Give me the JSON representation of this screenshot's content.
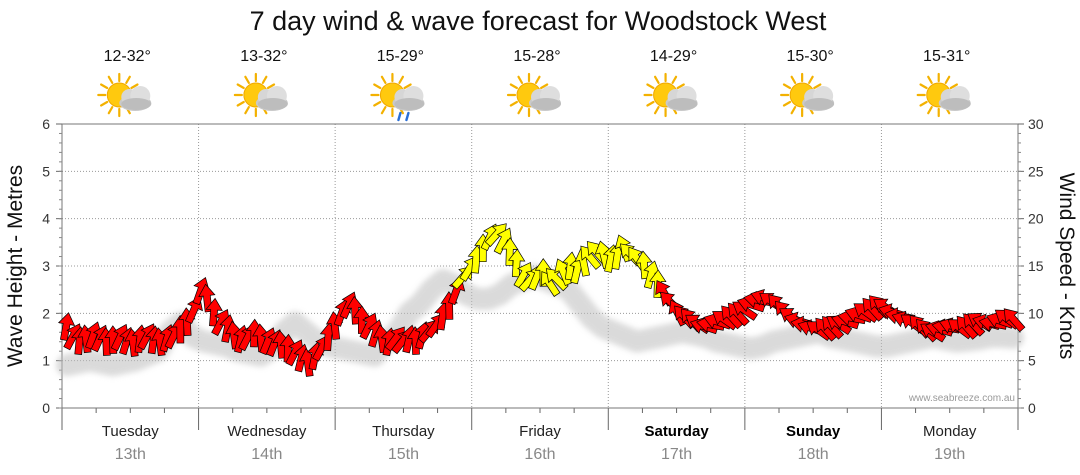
{
  "chart_data": {
    "type": "line",
    "title": "7 day wind & wave forecast for Woodstock West",
    "y_left_label": "Wave Height - Metres",
    "y_right_label": "Wind Speed - Knots",
    "y_left_ticks": [
      "0",
      "1",
      "2",
      "3",
      "4",
      "5",
      "6"
    ],
    "y_right_ticks": [
      "0",
      "5",
      "10",
      "15",
      "20",
      "25",
      "30"
    ],
    "y_left_lim": [
      0,
      6
    ],
    "y_right_lim": [
      0,
      30
    ],
    "grid": true,
    "days": [
      {
        "name": "Tuesday",
        "date": "13th",
        "temp": "12-32°",
        "icon": "sun-cloud-icon",
        "bold": false
      },
      {
        "name": "Wednesday",
        "date": "14th",
        "temp": "13-32°",
        "icon": "sun-cloud-icon",
        "bold": false
      },
      {
        "name": "Thursday",
        "date": "15th",
        "temp": "15-29°",
        "icon": "sun-cloud-rain-icon",
        "bold": false
      },
      {
        "name": "Friday",
        "date": "16th",
        "temp": "15-28°",
        "icon": "sun-cloud-icon",
        "bold": false
      },
      {
        "name": "Saturday",
        "date": "17th",
        "temp": "14-29°",
        "icon": "sun-cloud-icon",
        "bold": true
      },
      {
        "name": "Sunday",
        "date": "18th",
        "temp": "15-30°",
        "icon": "sun-cloud-icon",
        "bold": true
      },
      {
        "name": "Monday",
        "date": "19th",
        "temp": "15-31°",
        "icon": "sun-cloud-icon",
        "bold": false
      }
    ],
    "series": [
      {
        "unit": "knots",
        "color_low": "#ff0000",
        "color_high": "#ffff00",
        "values": [
          8.5,
          7.5,
          7.0,
          7.2,
          7.6,
          7.3,
          6.9,
          7.1,
          7.4,
          7.0,
          6.8,
          7.2,
          7.5,
          7.1,
          6.9,
          7.3,
          7.6,
          8.2,
          9.0,
          10.3,
          12.3,
          11.5,
          10.0,
          9.0,
          8.3,
          7.6,
          7.2,
          7.4,
          7.8,
          7.3,
          7.0,
          6.8,
          6.6,
          6.2,
          5.8,
          5.2,
          4.7,
          5.4,
          6.3,
          7.4,
          8.6,
          10.0,
          10.8,
          10.2,
          9.2,
          8.6,
          7.8,
          7.2,
          6.9,
          7.3,
          7.0,
          7.2,
          7.0,
          7.6,
          8.1,
          8.7,
          9.6,
          10.7,
          12.3,
          13.8,
          14.7,
          15.6,
          16.8,
          18.0,
          18.3,
          17.6,
          16.4,
          15.2,
          14.0,
          13.5,
          13.8,
          14.2,
          13.1,
          13.6,
          14.3,
          14.9,
          14.5,
          15.3,
          15.9,
          16.4,
          16.1,
          15.7,
          16.0,
          16.8,
          16.2,
          15.7,
          15.0,
          14.0,
          13.0,
          12.1,
          11.1,
          10.0,
          9.6,
          9.3,
          8.9,
          8.6,
          8.8,
          9.1,
          9.3,
          9.6,
          9.9,
          10.3,
          10.9,
          11.4,
          11.6,
          11.2,
          10.8,
          10.1,
          9.6,
          9.2,
          8.8,
          8.4,
          8.2,
          8.3,
          8.5,
          8.8,
          9.1,
          9.5,
          9.8,
          10.1,
          10.4,
          10.7,
          10.6,
          10.1,
          9.7,
          9.3,
          8.9,
          8.6,
          8.2,
          8.0,
          8.3,
          8.5,
          8.6,
          8.4,
          8.5,
          8.8,
          9.1,
          9.0,
          8.9,
          9.2,
          9.4,
          9.3
        ]
      },
      {
        "unit": "metres",
        "values": [
          1.2,
          1.25,
          1.3,
          1.25,
          1.2,
          1.25,
          1.3,
          1.4,
          1.5,
          1.9,
          2.1,
          1.8,
          1.7,
          1.65,
          1.6,
          1.5,
          1.45,
          1.4,
          1.55,
          1.9,
          2.1,
          1.9,
          1.7,
          1.6,
          1.55,
          1.5,
          1.45,
          1.4,
          1.7,
          1.9,
          2.3,
          2.5,
          2.8,
          3.0,
          2.9,
          2.7,
          2.6,
          2.6,
          2.7,
          2.9,
          3.0,
          3.1,
          3.0,
          2.9,
          2.8,
          2.5,
          2.2,
          2.0,
          1.9,
          1.8,
          1.7,
          1.75,
          1.8,
          1.85,
          1.9,
          1.85,
          1.8,
          1.7,
          1.65,
          1.6,
          1.55,
          1.6,
          1.7,
          1.75,
          1.8,
          1.85,
          1.9,
          1.8,
          1.75,
          1.7,
          1.65,
          1.6,
          1.6,
          1.65,
          1.7,
          1.75,
          1.8,
          1.75,
          1.7,
          1.72,
          1.75,
          1.8,
          1.8,
          1.78
        ]
      }
    ],
    "credit": "www.seabreeze.com.au"
  }
}
